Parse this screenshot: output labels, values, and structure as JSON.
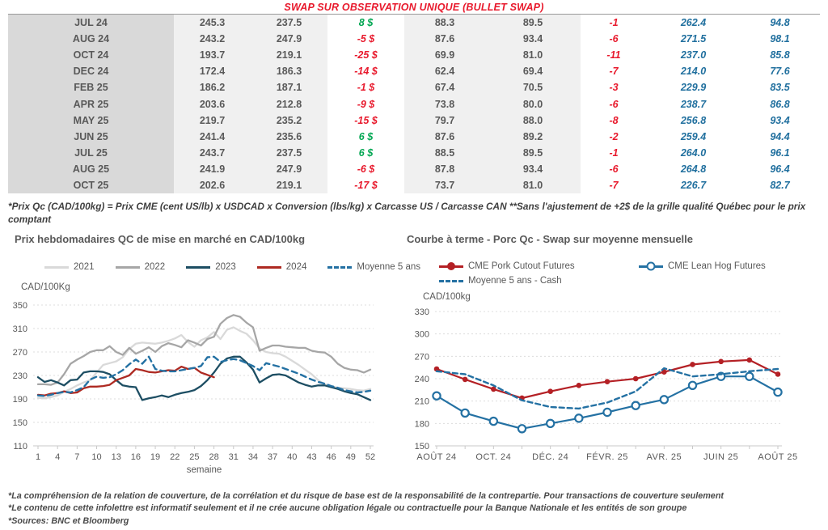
{
  "title": "SWAP SUR OBSERVATION UNIQUE (BULLET SWAP)",
  "colors": {
    "positive": "#00a651",
    "negative": "#e8192c",
    "blue": "#206f9e",
    "gray_text": "#595959",
    "title_red": "#e8192c"
  },
  "table": {
    "rows": [
      [
        "JUL 24",
        "245.3",
        "237.5",
        "8 $",
        "88.3",
        "89.5",
        "-1",
        "262.4",
        "94.8"
      ],
      [
        "AUG 24",
        "243.2",
        "247.9",
        "-5 $",
        "87.6",
        "93.4",
        "-6",
        "271.5",
        "98.1"
      ],
      [
        "OCT 24",
        "193.7",
        "219.1",
        "-25 $",
        "69.9",
        "81.0",
        "-11",
        "237.0",
        "85.8"
      ],
      [
        "DEC 24",
        "172.4",
        "186.3",
        "-14 $",
        "62.4",
        "69.4",
        "-7",
        "214.0",
        "77.6"
      ],
      [
        "FEB 25",
        "186.2",
        "187.1",
        "-1 $",
        "67.4",
        "70.5",
        "-3",
        "229.9",
        "83.5"
      ],
      [
        "APR 25",
        "203.6",
        "212.8",
        "-9 $",
        "73.8",
        "80.0",
        "-6",
        "238.7",
        "86.8"
      ],
      [
        "MAY 25",
        "219.7",
        "235.2",
        "-15 $",
        "79.7",
        "88.0",
        "-8",
        "256.8",
        "93.4"
      ],
      [
        "JUN 25",
        "241.4",
        "235.6",
        "6 $",
        "87.6",
        "89.2",
        "-2",
        "259.4",
        "94.4"
      ],
      [
        "JUL 25",
        "243.7",
        "237.5",
        "6 $",
        "88.5",
        "89.5",
        "-1",
        "264.0",
        "96.1"
      ],
      [
        "AUG 25",
        "241.9",
        "247.9",
        "-6 $",
        "87.8",
        "93.4",
        "-6",
        "264.8",
        "96.4"
      ],
      [
        "OCT 25",
        "202.6",
        "219.1",
        "-17 $",
        "73.7",
        "81.0",
        "-7",
        "226.7",
        "82.7"
      ]
    ]
  },
  "table_footnote": "*Prix Qc (CAD/100kg) = Prix CME (cent US/lb) x USDCAD x Conversion (lbs/kg) x Carcasse US / Carcasse CAN **Sans l'ajustement de +2$ de la grille qualité Québec pour le prix comptant",
  "chart_data": [
    {
      "type": "line",
      "title": "Prix hebdomadaires QC de mise en marché en CAD/100kg",
      "ylabel": "CAD/100Kg",
      "xlabel": "semaine",
      "ylim": [
        110,
        350
      ],
      "y_ticks": [
        350,
        310,
        270,
        230,
        190,
        150,
        110
      ],
      "x_ticks": [
        1,
        4,
        7,
        10,
        13,
        16,
        19,
        22,
        25,
        28,
        31,
        34,
        37,
        40,
        43,
        46,
        49,
        52
      ],
      "n_points": 52,
      "grid": true,
      "legend_position": "top",
      "series": [
        {
          "name": "2021",
          "color": "#d9d9d9",
          "style": "solid",
          "values": [
            192,
            191,
            193,
            196,
            202,
            207,
            213,
            218,
            222,
            235,
            248,
            251,
            254,
            261,
            275,
            284,
            286,
            285,
            284,
            286,
            289,
            293,
            299,
            287,
            279,
            290,
            295,
            304,
            292,
            308,
            312,
            306,
            301,
            290,
            276,
            270,
            268,
            267,
            262,
            255,
            248,
            240,
            232,
            222,
            215,
            212,
            209,
            208,
            207,
            205,
            204,
            207
          ]
        },
        {
          "name": "2022",
          "color": "#a6a6a6",
          "style": "solid",
          "values": [
            215,
            215,
            214,
            218,
            232,
            250,
            257,
            263,
            270,
            273,
            273,
            280,
            270,
            265,
            277,
            267,
            272,
            278,
            270,
            280,
            285,
            282,
            278,
            290,
            286,
            281,
            292,
            296,
            318,
            328,
            333,
            330,
            320,
            312,
            272,
            277,
            281,
            281,
            279,
            278,
            277,
            277,
            272,
            270,
            269,
            262,
            250,
            243,
            240,
            239,
            235,
            240
          ]
        },
        {
          "name": "2023",
          "color": "#1d4e63",
          "style": "solid",
          "values": [
            227,
            219,
            222,
            218,
            213,
            222,
            223,
            235,
            237,
            237,
            236,
            232,
            222,
            213,
            211,
            210,
            188,
            191,
            193,
            196,
            193,
            197,
            200,
            202,
            205,
            212,
            222,
            235,
            250,
            259,
            262,
            262,
            252,
            240,
            218,
            225,
            231,
            232,
            230,
            224,
            218,
            214,
            211,
            213,
            213,
            210,
            207,
            203,
            200,
            198,
            193,
            188
          ]
        },
        {
          "name": "2024",
          "color": "#ae2a22",
          "style": "solid",
          "values": [
            197,
            196,
            199,
            200,
            203,
            200,
            201,
            208,
            211,
            211,
            212,
            214,
            222,
            226,
            230,
            241,
            239,
            236,
            235,
            237,
            239,
            238,
            245,
            241,
            243,
            235,
            231,
            227
          ]
        },
        {
          "name": "Moyenne 5 ans",
          "color": "#2471a3",
          "style": "dashed",
          "values": [
            196,
            195,
            197,
            200,
            202,
            201,
            205,
            210,
            223,
            228,
            226,
            227,
            232,
            239,
            249,
            257,
            250,
            262,
            241,
            238,
            237,
            237,
            239,
            241,
            243,
            246,
            261,
            262,
            253,
            256,
            258,
            256,
            251,
            246,
            239,
            251,
            248,
            245,
            241,
            237,
            233,
            228,
            223,
            219,
            216,
            212,
            209,
            205,
            203,
            201,
            202,
            204
          ]
        }
      ]
    },
    {
      "type": "line",
      "title": "Courbe à terme - Porc Qc - Swap sur moyenne mensuelle",
      "ylabel": "CAD/100kg",
      "xlabel": "",
      "ylim": [
        150,
        330
      ],
      "y_ticks": [
        330,
        300,
        270,
        240,
        210,
        180,
        150
      ],
      "x_ticklabels": [
        "AOÛT 24",
        "OCT. 24",
        "DÉC. 24",
        "FÉVR. 25",
        "AVR. 25",
        "JUIN 25",
        "AOÛT 25"
      ],
      "x_ticklabel_positions": [
        0,
        2,
        4,
        6,
        8,
        10,
        12
      ],
      "n_points": 13,
      "grid": true,
      "legend_position": "top",
      "series": [
        {
          "name": "CME Pork Cutout Futures",
          "color": "#b42025",
          "style": "solid",
          "marker": "filled-circle",
          "values": [
            253,
            239,
            226,
            214,
            223,
            231,
            236,
            240,
            249,
            259,
            263,
            265,
            246
          ]
        },
        {
          "name": "CME Lean Hog Futures",
          "color": "#2471a3",
          "style": "solid",
          "marker": "open-circle",
          "values": [
            217,
            194,
            183,
            173,
            180,
            187,
            195,
            204,
            212,
            231,
            243,
            243,
            222
          ]
        },
        {
          "name": "Moyenne 5 ans - Cash",
          "color": "#2471a3",
          "style": "dashed",
          "values": [
            250,
            246,
            231,
            211,
            202,
            200,
            208,
            223,
            254,
            243,
            246,
            250,
            253
          ]
        }
      ]
    }
  ],
  "footer_lines": [
    "*La compréhension de la relation de couverture, de la corrélation et du risque de base est de la responsabilité de la contrepartie. Pour transactions de couverture seulement",
    "*Le contenu de cette infolettre est informatif seulement et il ne crée aucune obligation légale ou contractuelle pour la Banque Nationale et les entités de son groupe",
    "*Sources: BNC et Bloomberg"
  ]
}
